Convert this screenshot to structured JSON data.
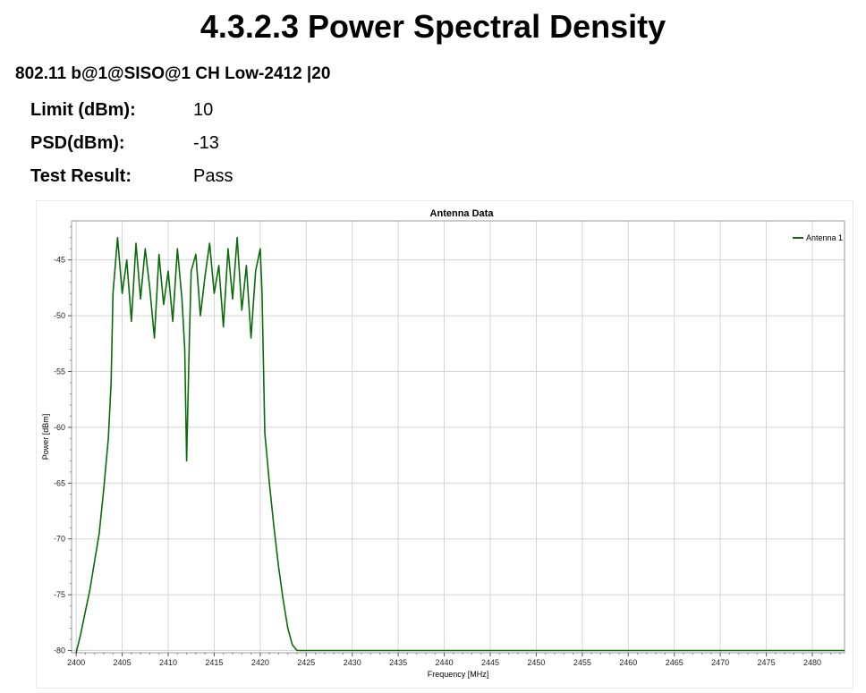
{
  "header": {
    "title": "4.3.2.3 Power Spectral Density",
    "case": "802.11 b@1@SISO@1 CH Low-2412 |20"
  },
  "summary": [
    {
      "label": "Limit (dBm):",
      "value": "10"
    },
    {
      "label": "PSD(dBm):",
      "value": "-13"
    },
    {
      "label": "Test Result:",
      "value": "Pass"
    }
  ],
  "chart_data": {
    "type": "line",
    "title": "Antenna Data",
    "xlabel": "Frequency [MHz]",
    "ylabel": "Power [dBm]",
    "xlim": [
      2399.5,
      2483.5
    ],
    "ylim": [
      -80.2,
      -41.5
    ],
    "xticks": [
      2400,
      2405,
      2410,
      2415,
      2420,
      2425,
      2430,
      2435,
      2440,
      2445,
      2450,
      2455,
      2460,
      2465,
      2470,
      2475,
      2480
    ],
    "yticks": [
      -45,
      -50,
      -55,
      -60,
      -65,
      -70,
      -75,
      -80
    ],
    "grid": true,
    "legend_position": "top-right",
    "series": [
      {
        "name": "Antenna 1",
        "color": "#0b6b0b",
        "x": [
          2400.0,
          2400.5,
          2401.0,
          2401.5,
          2402.0,
          2402.5,
          2403.0,
          2403.5,
          2403.8,
          2404.0,
          2404.5,
          2405.0,
          2405.5,
          2406.0,
          2406.5,
          2407.0,
          2407.5,
          2408.0,
          2408.5,
          2409.0,
          2409.5,
          2410.0,
          2410.5,
          2411.0,
          2411.5,
          2411.8,
          2412.0,
          2412.3,
          2412.5,
          2413.0,
          2413.5,
          2414.0,
          2414.5,
          2415.0,
          2415.5,
          2416.0,
          2416.5,
          2417.0,
          2417.5,
          2418.0,
          2418.5,
          2419.0,
          2419.5,
          2420.0,
          2420.2,
          2420.5,
          2421.0,
          2421.5,
          2422.0,
          2422.5,
          2423.0,
          2423.5,
          2424.0,
          2424.3,
          2425.0,
          2430.0,
          2440.0,
          2450.0,
          2460.0,
          2470.0,
          2480.0,
          2483.5
        ],
        "y": [
          -80.2,
          -78.5,
          -76.5,
          -74.5,
          -72.0,
          -69.5,
          -65.5,
          -61.0,
          -56.0,
          -48.0,
          -43.0,
          -48.0,
          -45.0,
          -50.5,
          -43.5,
          -48.5,
          -44.0,
          -47.5,
          -52.0,
          -44.5,
          -49.0,
          -46.0,
          -50.5,
          -44.0,
          -48.5,
          -53.0,
          -63.0,
          -52.0,
          -46.0,
          -44.5,
          -50.0,
          -46.5,
          -43.5,
          -48.0,
          -45.5,
          -51.0,
          -44.0,
          -48.5,
          -43.0,
          -49.5,
          -45.5,
          -52.0,
          -46.0,
          -44.0,
          -48.0,
          -60.5,
          -65.0,
          -69.0,
          -72.5,
          -75.5,
          -78.0,
          -79.5,
          -80.0,
          -80.0,
          -80.0,
          -80.0,
          -80.0,
          -80.0,
          -80.0,
          -80.0,
          -80.0,
          -80.0
        ]
      }
    ]
  }
}
